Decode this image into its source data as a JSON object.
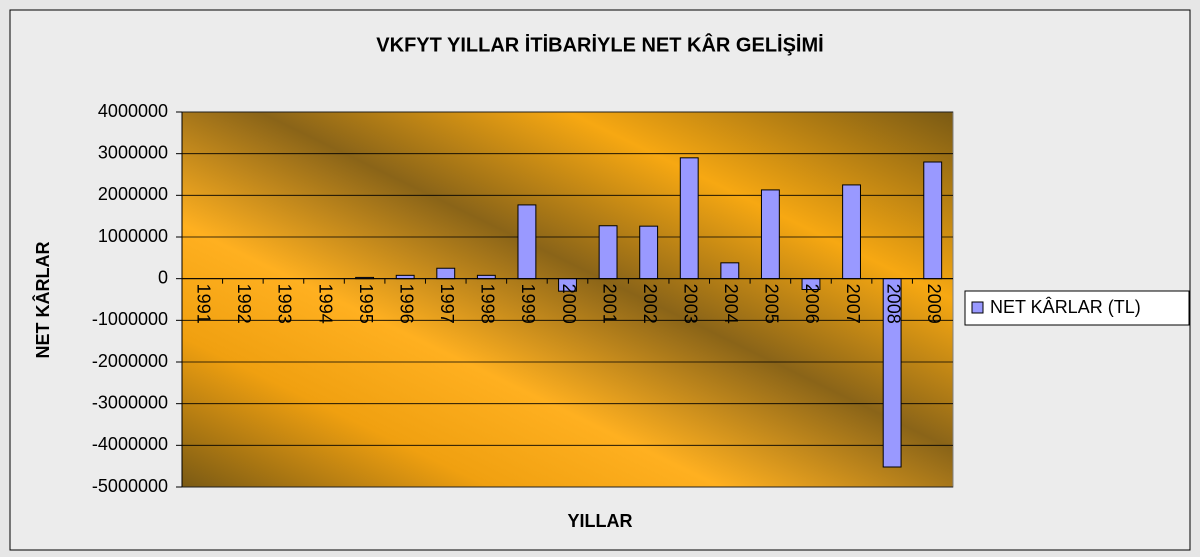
{
  "chart_data": {
    "type": "bar",
    "title": "VKFYT YILLAR İTİBARİYLE NET KÂR GELİŞİMİ",
    "x_label": "YILLAR",
    "y_label": "NET KÂRLAR",
    "categories": [
      "1991",
      "1992",
      "1993",
      "1994",
      "1995",
      "1996",
      "1997",
      "1998",
      "1999",
      "2000",
      "2001",
      "2002",
      "2003",
      "2004",
      "2005",
      "2006",
      "2007",
      "2008",
      "2009"
    ],
    "series": [
      {
        "name": "NET KÂRLAR (TL)",
        "color": "#9999ff",
        "values": [
          0,
          0,
          0,
          0,
          30000,
          80000,
          250000,
          80000,
          1770000,
          -300000,
          1270000,
          1260000,
          2900000,
          380000,
          2130000,
          -260000,
          2250000,
          -4520000,
          2800000
        ]
      }
    ],
    "ylim": [
      -5000000,
      4000000
    ],
    "yticks": [
      -5000000,
      -4000000,
      -3000000,
      -2000000,
      -1000000,
      0,
      1000000,
      2000000,
      3000000,
      4000000
    ],
    "grid": true,
    "legend": "right"
  }
}
